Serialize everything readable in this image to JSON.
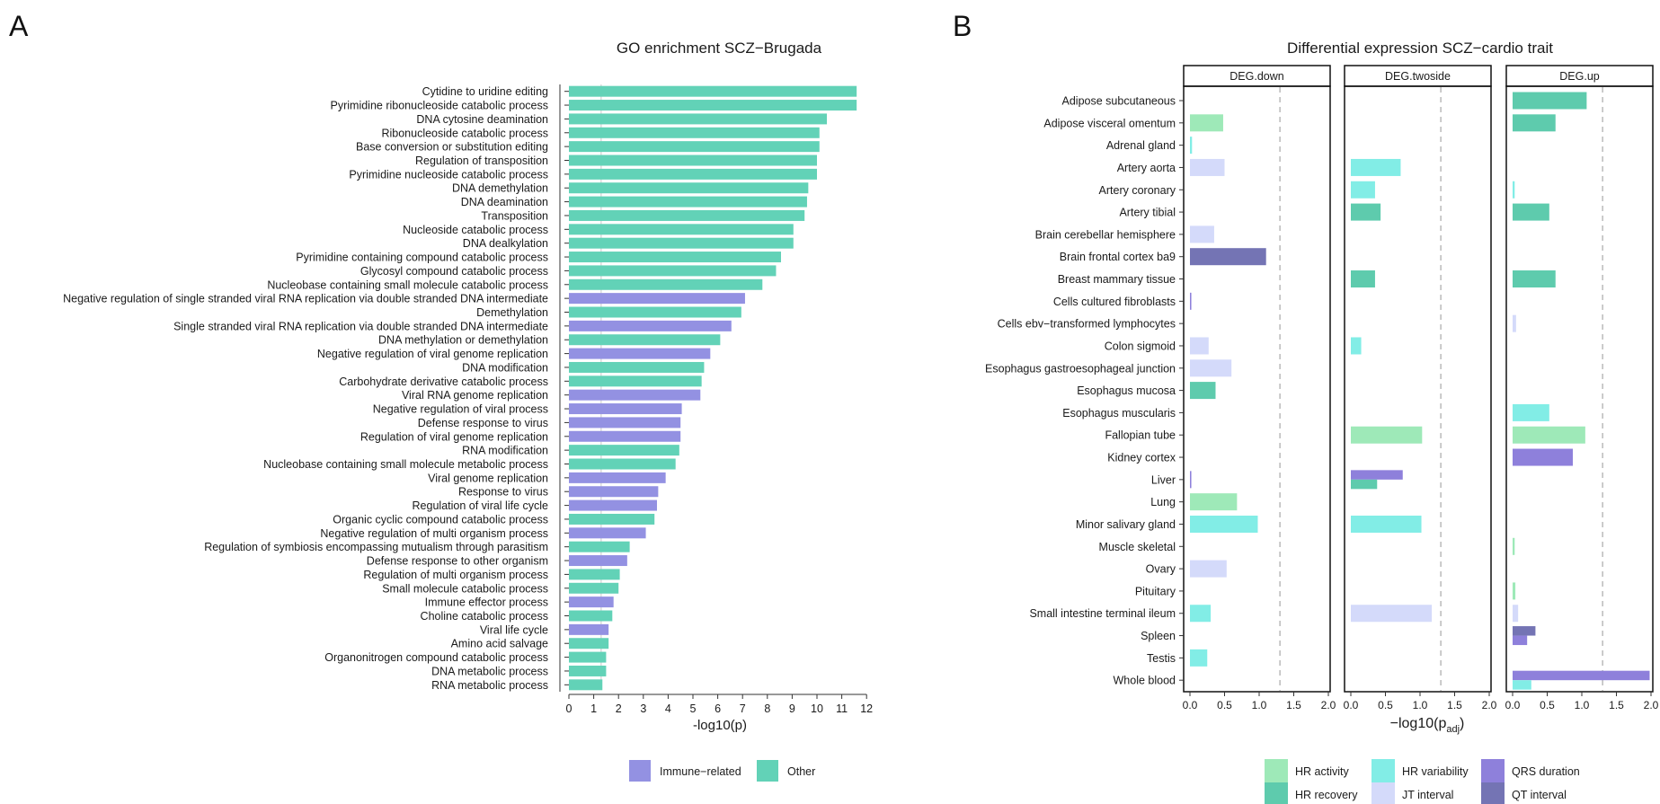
{
  "panel_labels": {
    "a": "A",
    "b": "B"
  },
  "colors": {
    "Immune-related": "#9391e2",
    "Other": "#62d2b7",
    "HR activity": "#9ee9b8",
    "HR recovery": "#5ecbad",
    "HR variability": "#82ede6",
    "JT interval": "#d4dafa",
    "QRS duration": "#8e80db",
    "QT interval": "#7474b4"
  },
  "chart_data": [
    {
      "type": "bar",
      "orientation": "horizontal",
      "title": "GO enrichment SCZ−Brugada",
      "xlabel": "-log10(p)",
      "xlim": [
        0,
        12.5
      ],
      "xticks": [
        0,
        1,
        2,
        3,
        4,
        5,
        6,
        7,
        8,
        9,
        10,
        11,
        12
      ],
      "reference_line": 1.3,
      "legend": {
        "position": "bottom",
        "entries": [
          "Immune−related",
          "Other"
        ]
      },
      "categories": [
        "Cytidine to uridine editing",
        "Pyrimidine ribonucleoside catabolic process",
        "DNA cytosine deamination",
        "Ribonucleoside catabolic process",
        "Base conversion or substitution editing",
        "Regulation of transposition",
        "Pyrimidine nucleoside catabolic process",
        "DNA demethylation",
        "DNA deamination",
        "Transposition",
        "Nucleoside catabolic process",
        "DNA dealkylation",
        "Pyrimidine containing compound catabolic process",
        "Glycosyl compound catabolic process",
        "Nucleobase containing small molecule catabolic process",
        "Negative regulation of single stranded viral RNA replication via double stranded DNA intermediate",
        "Demethylation",
        "Single stranded viral RNA replication via double stranded DNA intermediate",
        "DNA methylation or demethylation",
        "Negative regulation of viral genome replication",
        "DNA modification",
        "Carbohydrate derivative catabolic process",
        "Viral RNA genome replication",
        "Negative regulation of viral process",
        "Defense response to virus",
        "Regulation of viral genome replication",
        "RNA modification",
        "Nucleobase containing small molecule metabolic process",
        "Viral genome replication",
        "Response to virus",
        "Regulation of viral life cycle",
        "Organic cyclic compound catabolic process",
        "Negative regulation of multi organism process",
        "Regulation of symbiosis encompassing mutualism through parasitism",
        "Defense response to other organism",
        "Regulation of multi organism process",
        "Small molecule catabolic process",
        "Immune effector process",
        "Choline catabolic process",
        "Viral life cycle",
        "Amino acid salvage",
        "Organonitrogen compound catabolic process",
        "DNA metabolic process",
        "RNA metabolic process"
      ],
      "values": [
        11.6,
        11.6,
        10.4,
        10.1,
        10.1,
        10.0,
        10.0,
        9.65,
        9.6,
        9.5,
        9.05,
        9.05,
        8.55,
        8.35,
        7.8,
        7.1,
        6.95,
        6.55,
        6.1,
        5.7,
        5.45,
        5.35,
        5.3,
        4.55,
        4.5,
        4.5,
        4.45,
        4.3,
        3.9,
        3.6,
        3.55,
        3.45,
        3.1,
        2.45,
        2.35,
        2.05,
        2.0,
        1.8,
        1.75,
        1.6,
        1.6,
        1.5,
        1.5,
        1.35
      ],
      "groups": [
        "Other",
        "Other",
        "Other",
        "Other",
        "Other",
        "Other",
        "Other",
        "Other",
        "Other",
        "Other",
        "Other",
        "Other",
        "Other",
        "Other",
        "Other",
        "Immune−related",
        "Other",
        "Immune−related",
        "Other",
        "Immune−related",
        "Other",
        "Other",
        "Immune−related",
        "Immune−related",
        "Immune−related",
        "Immune−related",
        "Other",
        "Other",
        "Immune−related",
        "Immune−related",
        "Immune−related",
        "Other",
        "Immune−related",
        "Other",
        "Immune−related",
        "Other",
        "Other",
        "Immune−related",
        "Other",
        "Immune−related",
        "Other",
        "Other",
        "Other",
        "Other"
      ]
    },
    {
      "type": "bar",
      "orientation": "horizontal",
      "faceted": true,
      "title": "Differential expression SCZ−cardio trait",
      "xlabel": "−log10(p",
      "xlabel_sub": "adj",
      "xlabel_close": ")",
      "xlim": [
        0,
        2.0
      ],
      "xticks": [
        "0.0",
        "0.5",
        "1.0",
        "1.5",
        "2.0"
      ],
      "reference_line": 1.3,
      "facets": [
        "DEG.down",
        "DEG.twoside",
        "DEG.up"
      ],
      "legend": {
        "position": "bottom",
        "entries": [
          "HR activity",
          "HR recovery",
          "HR variability",
          "JT interval",
          "QRS duration",
          "QT interval"
        ]
      },
      "categories": [
        "Adipose subcutaneous",
        "Adipose visceral omentum",
        "Adrenal gland",
        "Artery aorta",
        "Artery coronary",
        "Artery tibial",
        "Brain cerebellar hemisphere",
        "Brain frontal cortex ba9",
        "Breast mammary tissue",
        "Cells cultured fibroblasts",
        "Cells ebv−transformed lymphocytes",
        "Colon sigmoid",
        "Esophagus gastroesophageal junction",
        "Esophagus mucosa",
        "Esophagus muscularis",
        "Fallopian tube",
        "Kidney cortex",
        "Liver",
        "Lung",
        "Minor salivary gland",
        "Muscle skeletal",
        "Ovary",
        "Pituitary",
        "Small intestine terminal ileum",
        "Spleen",
        "Testis",
        "Whole blood"
      ],
      "bars": {
        "DEG.down": [
          {
            "tissue": "Adipose visceral omentum",
            "trait": "HR activity",
            "value": 0.48
          },
          {
            "tissue": "Adrenal gland",
            "trait": "HR variability",
            "value": 0.03
          },
          {
            "tissue": "Artery aorta",
            "trait": "JT interval",
            "value": 0.5
          },
          {
            "tissue": "Brain cerebellar hemisphere",
            "trait": "JT interval",
            "value": 0.35
          },
          {
            "tissue": "Brain frontal cortex ba9",
            "trait": "QT interval",
            "value": 1.1
          },
          {
            "tissue": "Cells cultured fibroblasts",
            "trait": "QRS duration",
            "value": 0.02
          },
          {
            "tissue": "Colon sigmoid",
            "trait": "JT interval",
            "value": 0.27
          },
          {
            "tissue": "Esophagus gastroesophageal junction",
            "trait": "JT interval",
            "value": 0.6
          },
          {
            "tissue": "Esophagus mucosa",
            "trait": "HR recovery",
            "value": 0.37
          },
          {
            "tissue": "Liver",
            "trait": "QRS duration",
            "value": 0.02
          },
          {
            "tissue": "Lung",
            "trait": "HR activity",
            "value": 0.68
          },
          {
            "tissue": "Minor salivary gland",
            "trait": "HR variability",
            "value": 0.98
          },
          {
            "tissue": "Ovary",
            "trait": "JT interval",
            "value": 0.53
          },
          {
            "tissue": "Small intestine terminal ileum",
            "trait": "HR variability",
            "value": 0.3
          },
          {
            "tissue": "Testis",
            "trait": "HR variability",
            "value": 0.25
          }
        ],
        "DEG.twoside": [
          {
            "tissue": "Artery aorta",
            "trait": "HR variability",
            "value": 0.72
          },
          {
            "tissue": "Artery coronary",
            "trait": "HR variability",
            "value": 0.35
          },
          {
            "tissue": "Artery tibial",
            "trait": "HR recovery",
            "value": 0.43
          },
          {
            "tissue": "Breast mammary tissue",
            "trait": "HR recovery",
            "value": 0.35
          },
          {
            "tissue": "Colon sigmoid",
            "trait": "HR variability",
            "value": 0.15
          },
          {
            "tissue": "Fallopian tube",
            "trait": "HR activity",
            "value": 1.03
          },
          {
            "tissue": "Liver",
            "trait": "QRS duration",
            "value": 0.75
          },
          {
            "tissue": "Liver",
            "trait": "HR recovery",
            "value": 0.38
          },
          {
            "tissue": "Minor salivary gland",
            "trait": "HR variability",
            "value": 1.02
          },
          {
            "tissue": "Small intestine terminal ileum",
            "trait": "JT interval",
            "value": 1.17
          }
        ],
        "DEG.up": [
          {
            "tissue": "Adipose subcutaneous",
            "trait": "HR recovery",
            "value": 1.07
          },
          {
            "tissue": "Adipose visceral omentum",
            "trait": "HR recovery",
            "value": 0.62
          },
          {
            "tissue": "Artery coronary",
            "trait": "HR variability",
            "value": 0.03
          },
          {
            "tissue": "Artery tibial",
            "trait": "HR recovery",
            "value": 0.53
          },
          {
            "tissue": "Breast mammary tissue",
            "trait": "HR recovery",
            "value": 0.62
          },
          {
            "tissue": "Cells ebv−transformed lymphocytes",
            "trait": "JT interval",
            "value": 0.05
          },
          {
            "tissue": "Esophagus muscularis",
            "trait": "HR variability",
            "value": 0.53
          },
          {
            "tissue": "Fallopian tube",
            "trait": "HR activity",
            "value": 1.05
          },
          {
            "tissue": "Kidney cortex",
            "trait": "QRS duration",
            "value": 0.87
          },
          {
            "tissue": "Muscle skeletal",
            "trait": "HR activity",
            "value": 0.03
          },
          {
            "tissue": "Pituitary",
            "trait": "HR activity",
            "value": 0.04
          },
          {
            "tissue": "Small intestine terminal ileum",
            "trait": "JT interval",
            "value": 0.08
          },
          {
            "tissue": "Spleen",
            "trait": "QT interval",
            "value": 0.33
          },
          {
            "tissue": "Spleen",
            "trait": "QRS duration",
            "value": 0.21
          },
          {
            "tissue": "Whole blood",
            "trait": "QRS duration",
            "value": 1.98
          },
          {
            "tissue": "Whole blood",
            "trait": "HR variability",
            "value": 0.27
          }
        ]
      }
    }
  ]
}
